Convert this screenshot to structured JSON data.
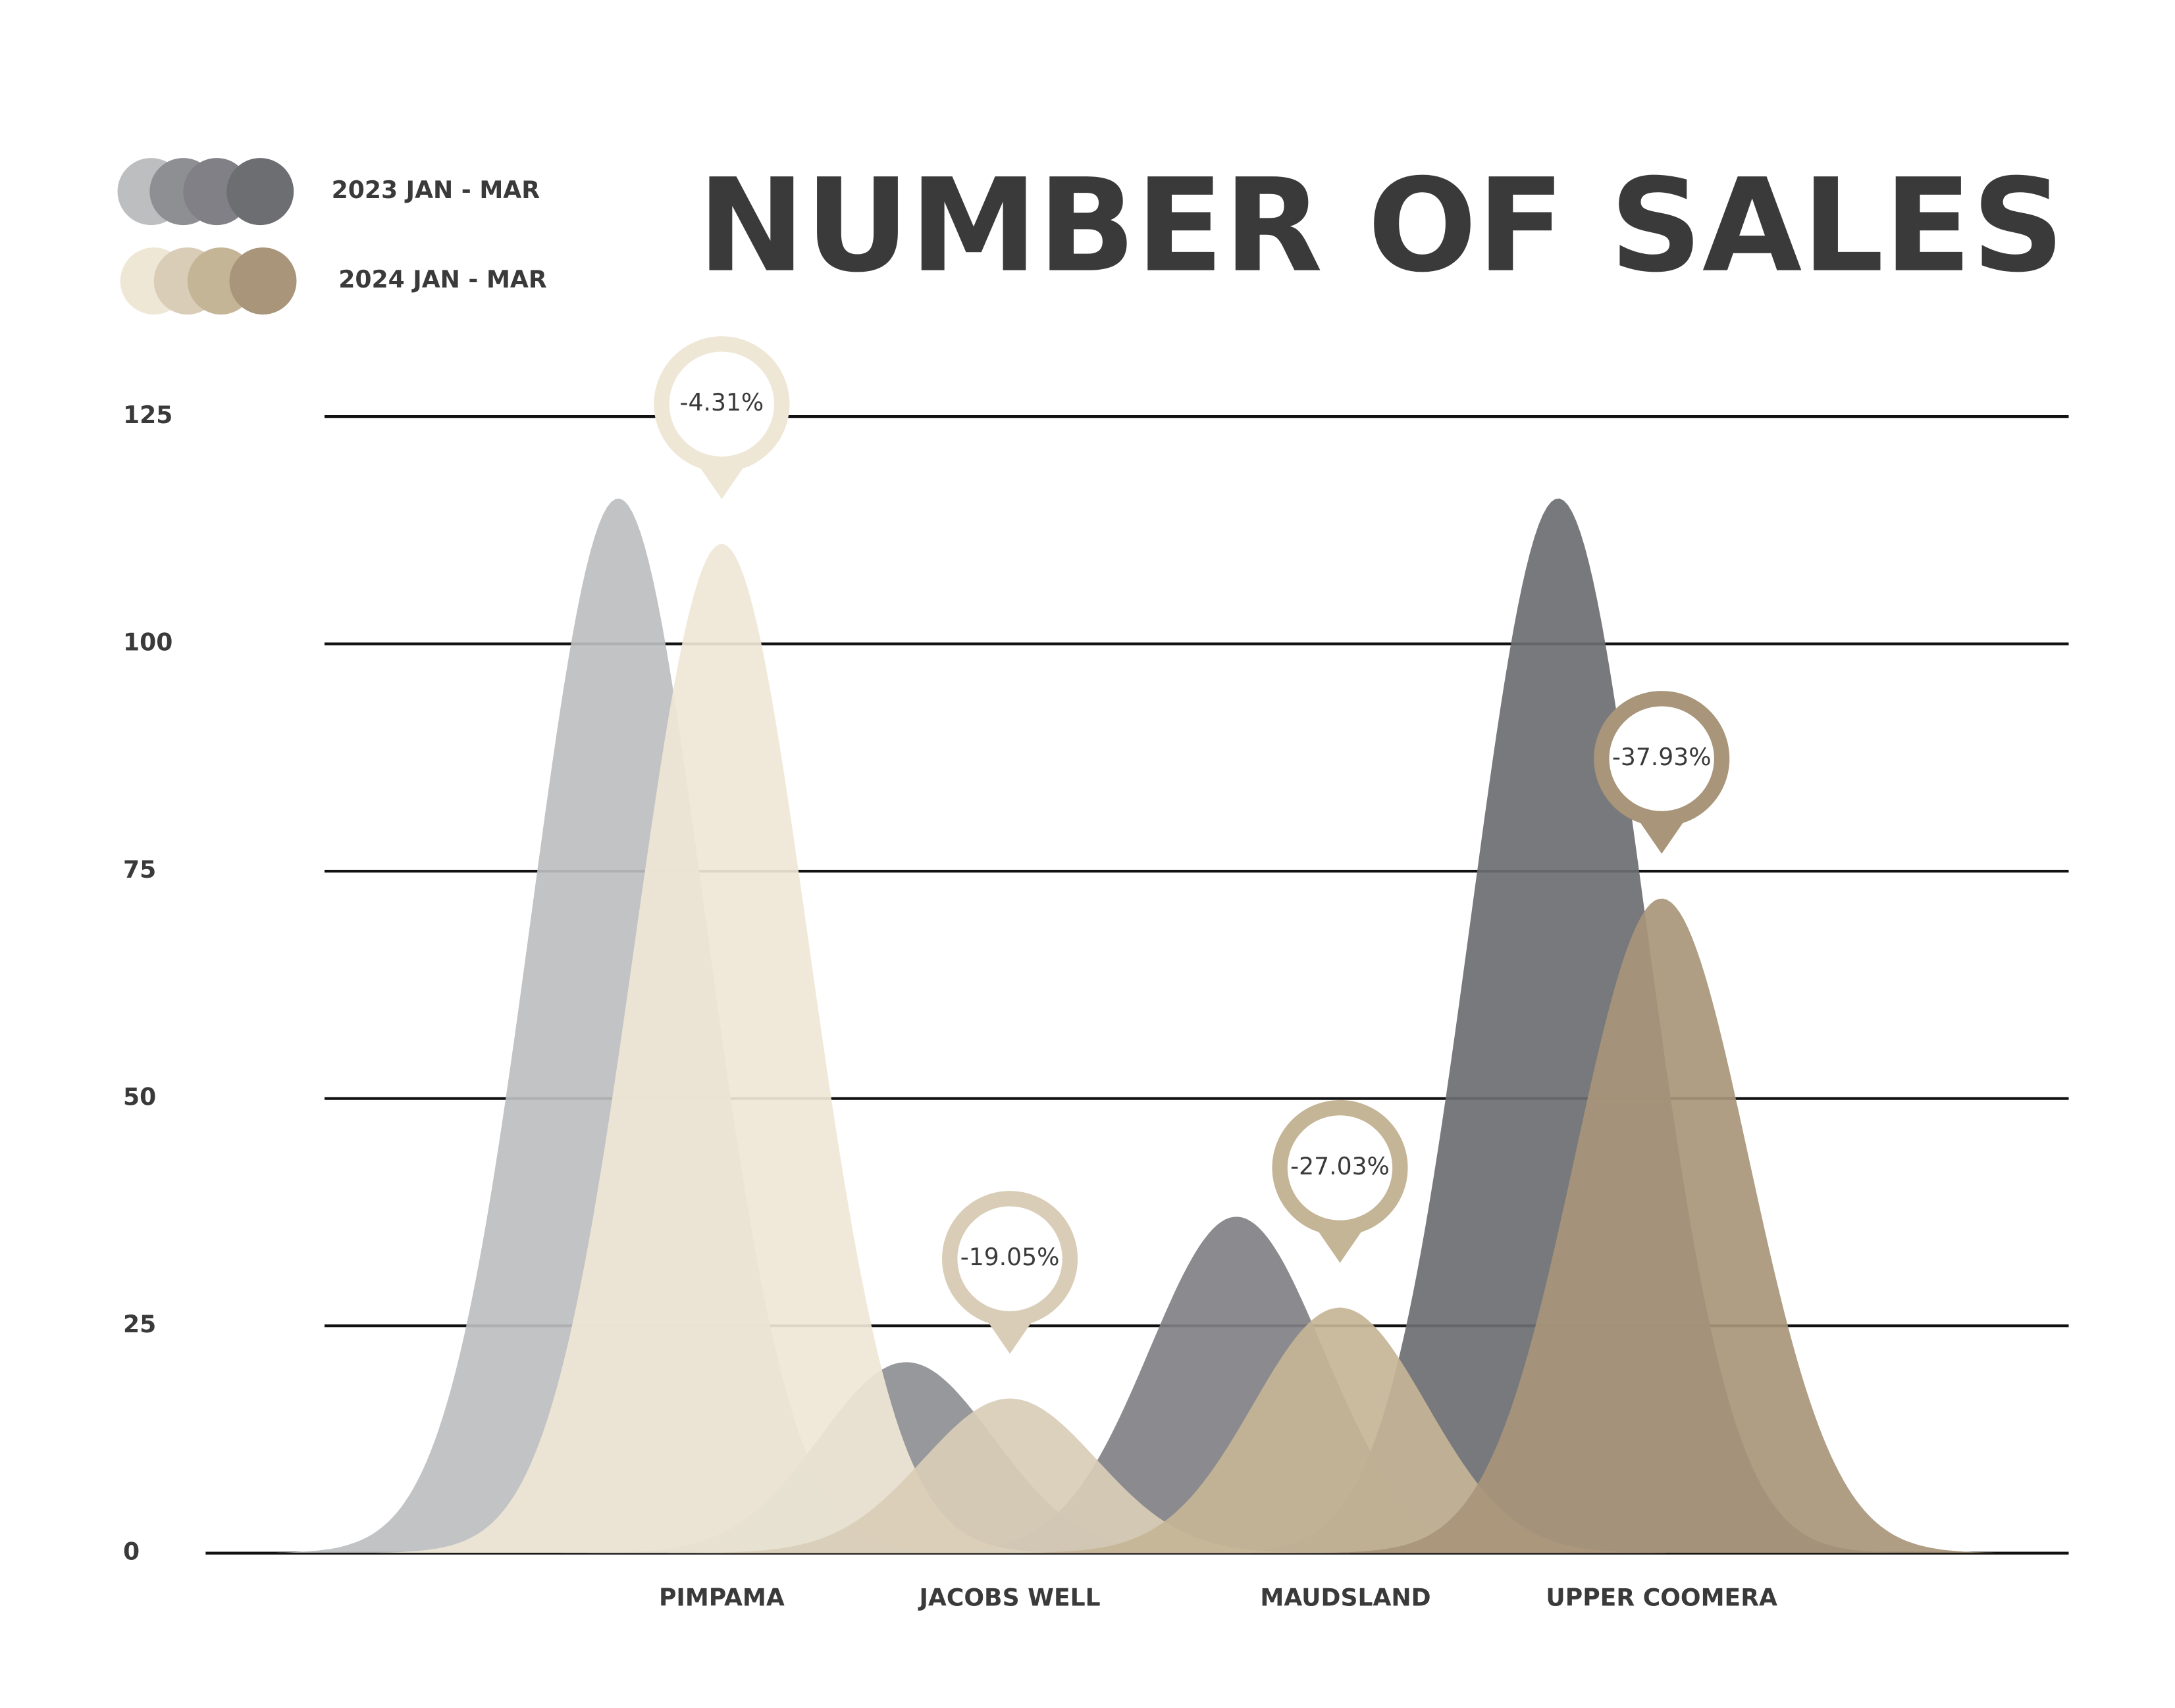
{
  "chart_data": {
    "type": "area",
    "title": "NUMBER OF SALES",
    "categories": [
      "PIMPAMA",
      "JACOBS WELL",
      "MAUDSLAND",
      "UPPER COOMERA"
    ],
    "series": [
      {
        "name": "2023 JAN - MAR",
        "color": [
          "#bdbec0",
          "#8e8f93",
          "#808086",
          "#6d6e72"
        ],
        "values": [
          116,
          21,
          37,
          116
        ]
      },
      {
        "name": "2024 JAN - MAR",
        "color": [
          "#efe7d6",
          "#d9cdb7",
          "#c5b597",
          "#a8957a"
        ],
        "values": [
          111,
          17,
          27,
          72
        ]
      }
    ],
    "annotations": [
      {
        "value": -4.31,
        "label": "-4.31%"
      },
      {
        "value": -19.05,
        "label": "-19.05%"
      },
      {
        "value": -27.03,
        "label": "-27.03%"
      },
      {
        "value": -37.93,
        "label": "-37.93%"
      }
    ],
    "ylim": [
      0,
      125
    ],
    "yticks": [
      0,
      25,
      50,
      75,
      100,
      125
    ],
    "grid": true
  }
}
